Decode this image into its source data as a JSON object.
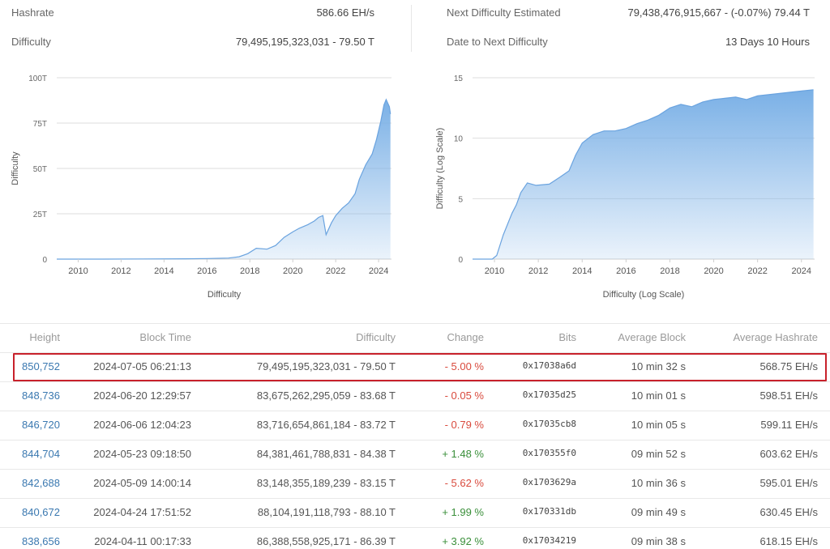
{
  "stats": {
    "hashrate_label": "Hashrate",
    "hashrate_value": "586.66 EH/s",
    "difficulty_label": "Difficulty",
    "difficulty_value": "79,495,195,323,031 - 79.50 T",
    "next_label": "Next Difficulty Estimated",
    "next_value": "79,438,476,915,667 - (-0.07%) 79.44 T",
    "date_label": "Date to Next Difficulty",
    "date_value": "13 Days 10 Hours"
  },
  "chart_data": [
    {
      "type": "area",
      "title": "",
      "ylabel": "Difficulty",
      "xlabel": "Difficulty",
      "color": "#7ab0e6",
      "ylim": [
        0,
        100
      ],
      "y_ticks": [
        "0",
        "25T",
        "50T",
        "75T",
        "100T"
      ],
      "x_ticks": [
        "2010",
        "2012",
        "2014",
        "2016",
        "2018",
        "2020",
        "2022",
        "2024"
      ],
      "xlim": [
        2009.0,
        2024.6
      ],
      "x": [
        2009.0,
        2011.0,
        2013.0,
        2015.0,
        2016.0,
        2017.0,
        2017.5,
        2017.9,
        2018.3,
        2018.8,
        2019.2,
        2019.6,
        2020.0,
        2020.3,
        2020.7,
        2021.0,
        2021.2,
        2021.4,
        2021.55,
        2021.8,
        2022.0,
        2022.3,
        2022.6,
        2022.9,
        2023.1,
        2023.4,
        2023.7,
        2023.9,
        2024.1,
        2024.25,
        2024.35,
        2024.5,
        2024.55
      ],
      "y": [
        0,
        0,
        0.1,
        0.2,
        0.3,
        0.6,
        1.3,
        3,
        6,
        5.5,
        7.5,
        12,
        15,
        17,
        19,
        21,
        23,
        24,
        13.5,
        20,
        24,
        28,
        31,
        36,
        44,
        52,
        58,
        66,
        76,
        85,
        88,
        84,
        80
      ]
    },
    {
      "type": "area",
      "title": "",
      "ylabel": "Difficulty (Log Scale)",
      "xlabel": "Difficulty (Log Scale)",
      "color": "#7ab0e6",
      "log_scale": true,
      "ylim": [
        0,
        15
      ],
      "y_ticks": [
        "0",
        "5",
        "10",
        "15"
      ],
      "x_ticks": [
        "2010",
        "2012",
        "2014",
        "2016",
        "2018",
        "2020",
        "2022",
        "2024"
      ],
      "xlim": [
        2009.0,
        2024.6
      ],
      "x": [
        2009.0,
        2009.9,
        2010.1,
        2010.4,
        2010.8,
        2011.0,
        2011.2,
        2011.5,
        2011.9,
        2012.5,
        2013.0,
        2013.4,
        2013.7,
        2014.0,
        2014.5,
        2015.0,
        2015.5,
        2016.0,
        2016.5,
        2017.0,
        2017.5,
        2018.0,
        2018.5,
        2019.0,
        2019.5,
        2020.0,
        2020.5,
        2021.0,
        2021.5,
        2022.0,
        2022.5,
        2023.0,
        2023.5,
        2024.0,
        2024.55
      ],
      "y": [
        0,
        0,
        0.3,
        2.0,
        3.8,
        4.5,
        5.5,
        6.3,
        6.1,
        6.2,
        6.8,
        7.3,
        8.6,
        9.6,
        10.3,
        10.6,
        10.6,
        10.8,
        11.2,
        11.5,
        11.9,
        12.5,
        12.8,
        12.6,
        13.0,
        13.2,
        13.3,
        13.4,
        13.2,
        13.5,
        13.6,
        13.7,
        13.8,
        13.9,
        14.0
      ]
    }
  ],
  "table": {
    "headers": [
      "Height",
      "Block Time",
      "Difficulty",
      "Change",
      "Bits",
      "Average Block",
      "Average Hashrate"
    ],
    "rows": [
      {
        "height": "850,752",
        "time": "2024-07-05 06:21:13",
        "difficulty": "79,495,195,323,031 - 79.50 T",
        "change": "- 5.00 %",
        "bits": "0x17038a6d",
        "avg_block": "10 min 32 s",
        "avg_hash": "568.75 EH/s",
        "positive": false
      },
      {
        "height": "848,736",
        "time": "2024-06-20 12:29:57",
        "difficulty": "83,675,262,295,059 - 83.68 T",
        "change": "- 0.05 %",
        "bits": "0x17035d25",
        "avg_block": "10 min 01 s",
        "avg_hash": "598.51 EH/s",
        "positive": false
      },
      {
        "height": "846,720",
        "time": "2024-06-06 12:04:23",
        "difficulty": "83,716,654,861,184 - 83.72 T",
        "change": "- 0.79 %",
        "bits": "0x17035cb8",
        "avg_block": "10 min 05 s",
        "avg_hash": "599.11 EH/s",
        "positive": false
      },
      {
        "height": "844,704",
        "time": "2024-05-23 09:18:50",
        "difficulty": "84,381,461,788,831 - 84.38 T",
        "change": "+ 1.48 %",
        "bits": "0x170355f0",
        "avg_block": "09 min 52 s",
        "avg_hash": "603.62 EH/s",
        "positive": true
      },
      {
        "height": "842,688",
        "time": "2024-05-09 14:00:14",
        "difficulty": "83,148,355,189,239 - 83.15 T",
        "change": "- 5.62 %",
        "bits": "0x1703629a",
        "avg_block": "10 min 36 s",
        "avg_hash": "595.01 EH/s",
        "positive": false
      },
      {
        "height": "840,672",
        "time": "2024-04-24 17:51:52",
        "difficulty": "88,104,191,118,793 - 88.10 T",
        "change": "+ 1.99 %",
        "bits": "0x170331db",
        "avg_block": "09 min 49 s",
        "avg_hash": "630.45 EH/s",
        "positive": true
      },
      {
        "height": "838,656",
        "time": "2024-04-11 00:17:33",
        "difficulty": "86,388,558,925,171 - 86.39 T",
        "change": "+ 3.92 %",
        "bits": "0x17034219",
        "avg_block": "09 min 38 s",
        "avg_hash": "618.15 EH/s",
        "positive": true
      }
    ]
  }
}
